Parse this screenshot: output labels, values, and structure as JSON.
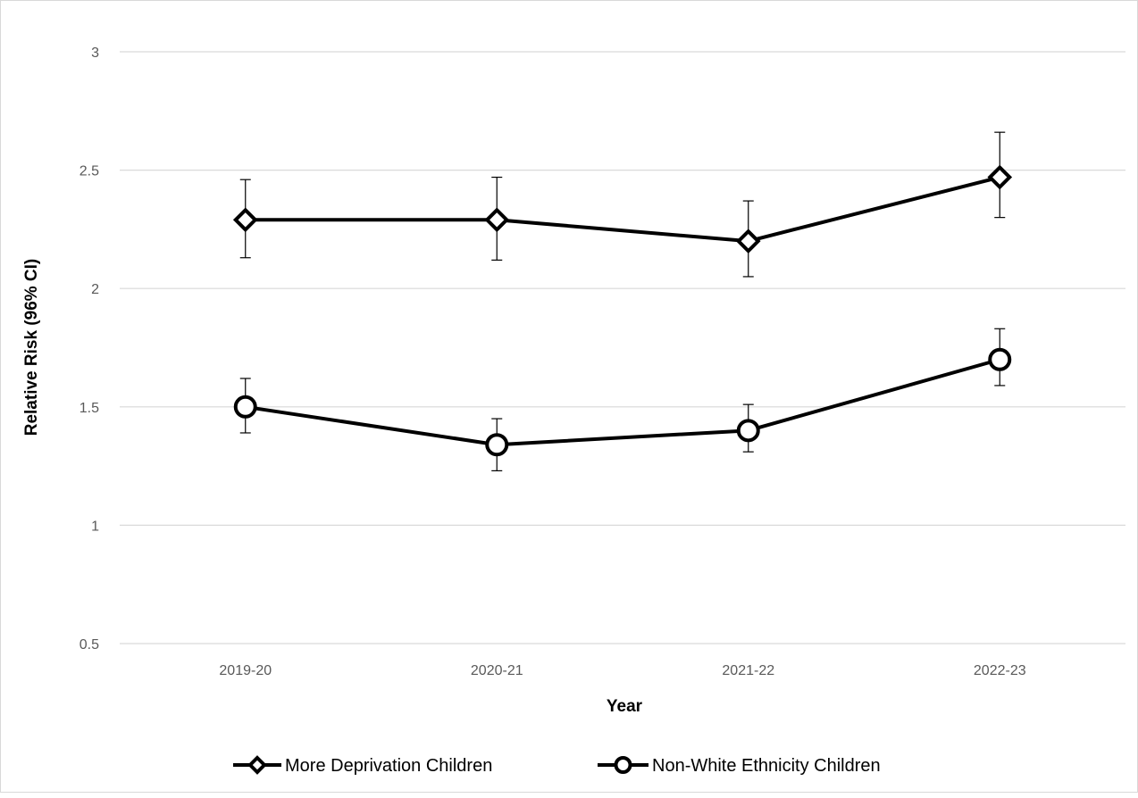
{
  "chart_data": {
    "type": "line",
    "title": "",
    "xlabel": "Year",
    "ylabel": "Relative Risk (96% CI)",
    "ylim": [
      0.5,
      3
    ],
    "yticks": [
      "0.5",
      "1",
      "1.5",
      "2",
      "2.5",
      "3"
    ],
    "grid": "horizontal",
    "legend": "bottom",
    "categories": [
      "2019-20",
      "2020-21",
      "2021-22",
      "2022-23"
    ],
    "series": [
      {
        "name": "More Deprivation Children",
        "marker": "diamond",
        "color": "#000000",
        "values": [
          2.29,
          2.29,
          2.2,
          2.47
        ],
        "ci_low": [
          2.13,
          2.12,
          2.05,
          2.3
        ],
        "ci_high": [
          2.46,
          2.47,
          2.37,
          2.66
        ]
      },
      {
        "name": "Non-White Ethnicity Children",
        "marker": "circle",
        "color": "#000000",
        "values": [
          1.5,
          1.34,
          1.4,
          1.7
        ],
        "ci_low": [
          1.39,
          1.23,
          1.31,
          1.59
        ],
        "ci_high": [
          1.62,
          1.45,
          1.51,
          1.83
        ]
      }
    ]
  }
}
